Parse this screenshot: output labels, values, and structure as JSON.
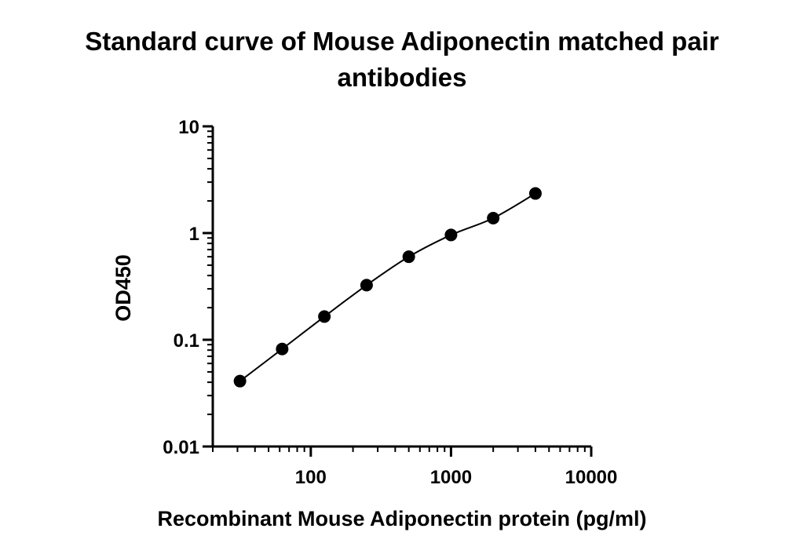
{
  "chart_data": {
    "type": "scatter",
    "title_lines": [
      "Standard curve of Mouse Adiponectin matched pair",
      "antibodies"
    ],
    "xlabel": "Recombinant Mouse Adiponectin protein (pg/ml)",
    "ylabel": "OD450",
    "xscale": "log",
    "yscale": "log",
    "xlim": [
      20,
      10000
    ],
    "ylim": [
      0.01,
      10
    ],
    "xticks": [
      {
        "value": 100,
        "label": "100"
      },
      {
        "value": 1000,
        "label": "1000"
      },
      {
        "value": 10000,
        "label": "10000"
      }
    ],
    "yticks": [
      {
        "value": 10,
        "label": "10"
      },
      {
        "value": 1,
        "label": "1"
      },
      {
        "value": 0.1,
        "label": "0.1"
      },
      {
        "value": 0.01,
        "label": "0.01"
      }
    ],
    "series": [
      {
        "x": [
          31.25,
          62.5,
          125,
          250,
          500,
          1000,
          2000,
          4000
        ],
        "y": [
          0.041,
          0.082,
          0.165,
          0.325,
          0.6,
          0.96,
          1.38,
          2.35
        ]
      }
    ],
    "fit_curve": true,
    "grid": false,
    "colors": {
      "marker": "#000000",
      "line": "#000000",
      "axis": "#000000"
    }
  }
}
